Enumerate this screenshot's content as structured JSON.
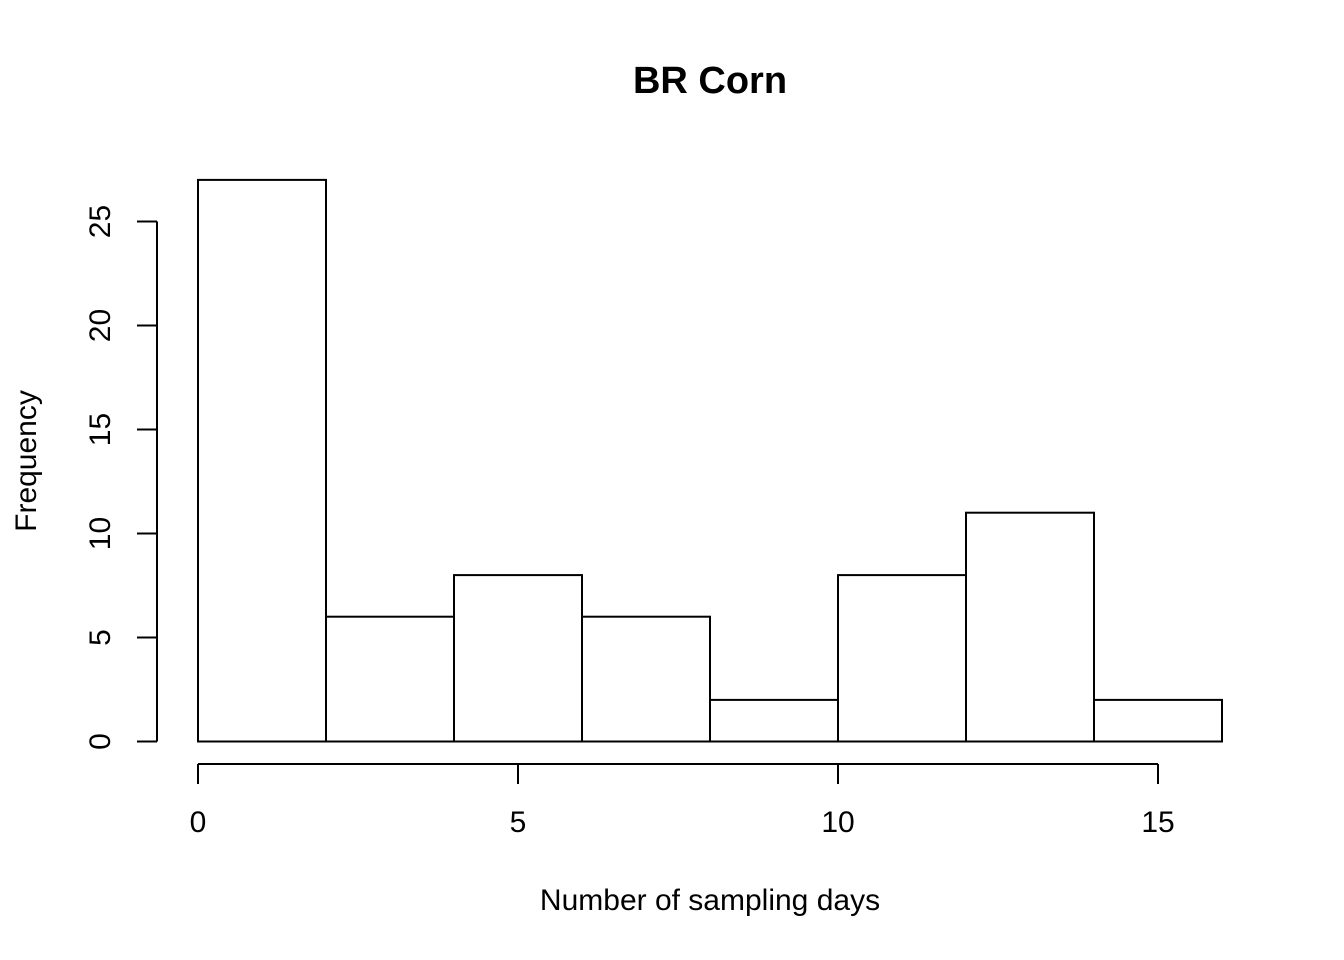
{
  "chart_data": {
    "type": "bar",
    "title": "BR Corn",
    "xlabel": "Number of sampling days",
    "ylabel": "Frequency",
    "bins": [
      {
        "start": 0,
        "end": 2,
        "count": 27
      },
      {
        "start": 2,
        "end": 4,
        "count": 6
      },
      {
        "start": 4,
        "end": 6,
        "count": 8
      },
      {
        "start": 6,
        "end": 8,
        "count": 6
      },
      {
        "start": 8,
        "end": 10,
        "count": 2
      },
      {
        "start": 10,
        "end": 12,
        "count": 8
      },
      {
        "start": 12,
        "end": 14,
        "count": 11
      },
      {
        "start": 14,
        "end": 16,
        "count": 2
      }
    ],
    "xticks": [
      0,
      5,
      10,
      15
    ],
    "yticks": [
      0,
      5,
      10,
      15,
      20,
      25
    ],
    "xlim": [
      0,
      16
    ],
    "ylim": [
      0,
      27
    ],
    "grid": false,
    "colors": {
      "bar_fill": "#ffffff",
      "bar_stroke": "#000000"
    }
  }
}
